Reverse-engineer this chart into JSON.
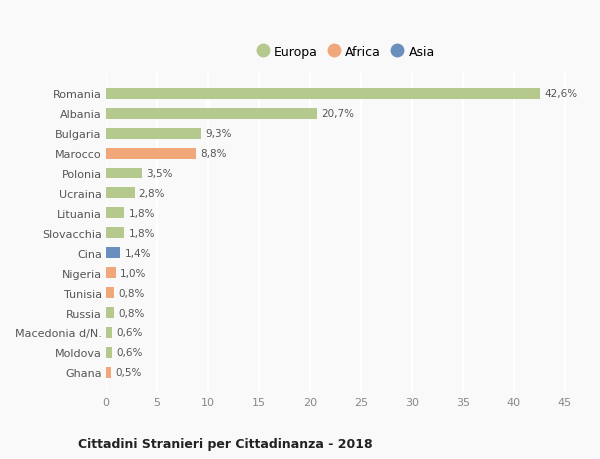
{
  "categories": [
    "Romania",
    "Albania",
    "Bulgaria",
    "Marocco",
    "Polonia",
    "Ucraina",
    "Lituania",
    "Slovacchia",
    "Cina",
    "Nigeria",
    "Tunisia",
    "Russia",
    "Macedonia d/N.",
    "Moldova",
    "Ghana"
  ],
  "values": [
    42.6,
    20.7,
    9.3,
    8.8,
    3.5,
    2.8,
    1.8,
    1.8,
    1.4,
    1.0,
    0.8,
    0.8,
    0.6,
    0.6,
    0.5
  ],
  "labels": [
    "42,6%",
    "20,7%",
    "9,3%",
    "8,8%",
    "3,5%",
    "2,8%",
    "1,8%",
    "1,8%",
    "1,4%",
    "1,0%",
    "0,8%",
    "0,8%",
    "0,6%",
    "0,6%",
    "0,5%"
  ],
  "continents": [
    "Europa",
    "Europa",
    "Europa",
    "Africa",
    "Europa",
    "Europa",
    "Europa",
    "Europa",
    "Asia",
    "Africa",
    "Africa",
    "Europa",
    "Europa",
    "Europa",
    "Africa"
  ],
  "colors": {
    "Europa": "#b5c98e",
    "Africa": "#f0a87a",
    "Asia": "#6b8fbd"
  },
  "xlim": [
    0,
    47
  ],
  "xticks": [
    0,
    5,
    10,
    15,
    20,
    25,
    30,
    35,
    40,
    45
  ],
  "title": "Cittadini Stranieri per Cittadinanza - 2018",
  "bg_color": "#f9f9f9",
  "grid_color": "#ffffff",
  "bar_height": 0.55,
  "legend_order": [
    "Europa",
    "Africa",
    "Asia"
  ]
}
